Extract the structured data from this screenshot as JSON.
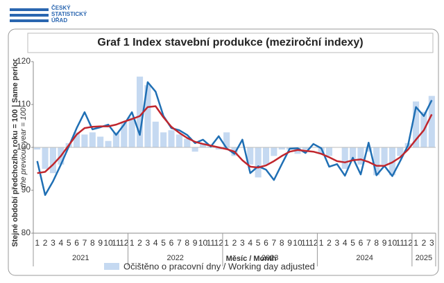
{
  "chart_data": {
    "type": "bar-line",
    "logo": [
      "ČESKÝ",
      "STATISTICKÝ",
      "ÚŘAD"
    ],
    "title": "Graf 1 Index stavební produkce (meziroční indexy)",
    "y_label": [
      "Stejné období předchozího roku = 100 | Same period of",
      "the previous year = 100"
    ],
    "x_label": "Měsíc / Month",
    "categories": [
      "1",
      "2",
      "3",
      "4",
      "5",
      "6",
      "7",
      "8",
      "9",
      "10",
      "11",
      "12",
      "1",
      "2",
      "3",
      "4",
      "5",
      "6",
      "7",
      "8",
      "9",
      "10",
      "11",
      "12",
      "1",
      "2",
      "3",
      "4",
      "5",
      "6",
      "7",
      "8",
      "9",
      "10",
      "11",
      "12",
      "1",
      "2",
      "3",
      "4",
      "5",
      "6",
      "7",
      "8",
      "9",
      "10",
      "11",
      "12",
      "1",
      "2",
      "3"
    ],
    "x_groups": [
      "2021",
      "2022",
      "2023",
      "2024",
      "2025"
    ],
    "series": [
      {
        "name": "Očištěno o pracovní dny / Working day adjusted",
        "kind": "bar",
        "color": "#c5d9f1",
        "values": [
          99.5,
          95,
          94,
          96,
          101,
          103.5,
          103,
          103.5,
          102.5,
          101.5,
          103.5,
          106,
          107,
          116.5,
          114.5,
          106,
          103.5,
          104,
          103,
          102,
          99,
          101,
          100.5,
          99.5,
          103.5,
          98,
          100,
          96,
          93,
          96,
          98,
          99.5,
          99.5,
          98.5,
          99.5,
          100,
          98.5,
          98,
          100,
          95,
          97,
          96,
          99,
          93.5,
          96,
          93.5,
          98,
          101,
          110.7,
          108.3,
          112
        ]
      },
      {
        "kind": "line",
        "color": "#1f6fb4",
        "values": [
          96.8,
          88.9,
          92.1,
          96,
          100.2,
          104.5,
          108.2,
          104.2,
          104.7,
          105.3,
          102.9,
          105.3,
          108.2,
          102.9,
          115.2,
          113,
          107.3,
          104.5,
          104,
          102.9,
          101,
          101.8,
          100.2,
          102.6,
          99.8,
          98.5,
          101.8,
          94,
          95.6,
          94.8,
          92.4,
          96.1,
          99.7,
          99.8,
          98.7,
          100.8,
          99.8,
          95.5,
          96.1,
          93.4,
          97.6,
          93.7,
          101.1,
          93.5,
          95.7,
          93.3,
          96.8,
          100.5,
          109.4,
          107.3,
          111
        ]
      },
      {
        "kind": "line",
        "color": "#c0262d",
        "values": [
          94,
          94.3,
          96,
          98,
          100.5,
          103,
          104.5,
          104.8,
          104.9,
          104.9,
          105.3,
          106,
          106.6,
          107.3,
          109.4,
          109.6,
          107,
          104.8,
          103.4,
          102.2,
          101.3,
          100.8,
          100.4,
          100,
          99.6,
          99,
          97,
          95.5,
          95.3,
          95.8,
          96.8,
          98,
          99,
          99.4,
          99.2,
          99,
          98.5,
          97.7,
          96.8,
          96.5,
          97,
          97.2,
          96.6,
          95.7,
          95.7,
          96.5,
          97.7,
          99.5,
          101.8,
          104,
          107.7
        ]
      }
    ],
    "ylim": [
      80,
      120
    ],
    "yticks": [
      80,
      90,
      100,
      110,
      120
    ],
    "bar_base": 100,
    "grid": false
  }
}
